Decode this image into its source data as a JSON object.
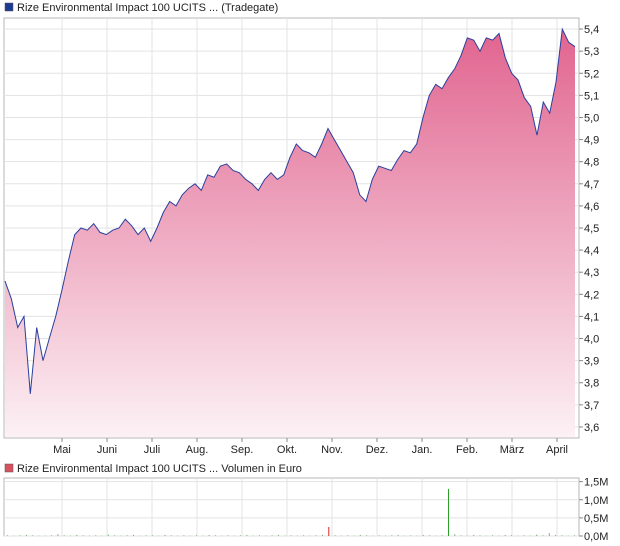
{
  "chart_data": [
    {
      "type": "area",
      "legend_label": "Rize Environmental Impact 100 UCITS ... (Tradegate)",
      "legend_color": "#1f3a93",
      "line_color": "#2a3f9d",
      "fill_top_color": "#e1648f",
      "fill_bottom_color": "#fcf1f5",
      "grid": true,
      "y_axis_side": "right",
      "ylim": [
        3.55,
        5.45
      ],
      "y_ticks": [
        {
          "value": 5.4,
          "label": "5,4"
        },
        {
          "value": 5.3,
          "label": "5,3"
        },
        {
          "value": 5.2,
          "label": "5,2"
        },
        {
          "value": 5.1,
          "label": "5,1"
        },
        {
          "value": 5.0,
          "label": "5,0"
        },
        {
          "value": 4.9,
          "label": "4,9"
        },
        {
          "value": 4.8,
          "label": "4,8"
        },
        {
          "value": 4.7,
          "label": "4,7"
        },
        {
          "value": 4.6,
          "label": "4,6"
        },
        {
          "value": 4.5,
          "label": "4,5"
        },
        {
          "value": 4.4,
          "label": "4,4"
        },
        {
          "value": 4.3,
          "label": "4,3"
        },
        {
          "value": 4.2,
          "label": "4,2"
        },
        {
          "value": 4.1,
          "label": "4,1"
        },
        {
          "value": 4.0,
          "label": "4,0"
        },
        {
          "value": 3.9,
          "label": "3,9"
        },
        {
          "value": 3.8,
          "label": "3,8"
        },
        {
          "value": 3.7,
          "label": "3,7"
        },
        {
          "value": 3.6,
          "label": "3,6"
        }
      ],
      "x_ticks": [
        "Mai",
        "Juni",
        "Juli",
        "Aug.",
        "Sep.",
        "Okt.",
        "Nov.",
        "Dez.",
        "Jan.",
        "Feb.",
        "März",
        "April"
      ],
      "series": [
        {
          "values": [
            4.26,
            4.18,
            4.05,
            4.1,
            3.75,
            4.05,
            3.9,
            4.0,
            4.1,
            4.22,
            4.35,
            4.47,
            4.5,
            4.49,
            4.52,
            4.48,
            4.47,
            4.49,
            4.5,
            4.54,
            4.51,
            4.47,
            4.5,
            4.44,
            4.5,
            4.57,
            4.62,
            4.6,
            4.65,
            4.68,
            4.7,
            4.67,
            4.74,
            4.73,
            4.78,
            4.79,
            4.76,
            4.75,
            4.72,
            4.7,
            4.67,
            4.72,
            4.75,
            4.72,
            4.74,
            4.82,
            4.88,
            4.85,
            4.84,
            4.82,
            4.88,
            4.95,
            4.9,
            4.85,
            4.8,
            4.75,
            4.65,
            4.62,
            4.72,
            4.78,
            4.77,
            4.76,
            4.81,
            4.85,
            4.84,
            4.88,
            5.0,
            5.1,
            5.15,
            5.13,
            5.18,
            5.22,
            5.28,
            5.36,
            5.35,
            5.3,
            5.36,
            5.35,
            5.38,
            5.27,
            5.2,
            5.17,
            5.09,
            5.05,
            4.92,
            5.07,
            5.02,
            5.16,
            5.4,
            5.34,
            5.32
          ]
        }
      ]
    },
    {
      "type": "bar",
      "legend_label": "Rize Environmental Impact 100 UCITS ... Volumen in Euro",
      "legend_color": "#d9505f",
      "grid": true,
      "y_axis_side": "right",
      "ylim": [
        0,
        1.6
      ],
      "y_ticks": [
        {
          "value": 1.5,
          "label": "1,5M"
        },
        {
          "value": 1.0,
          "label": "1,0M"
        },
        {
          "value": 0.5,
          "label": "0,5M"
        },
        {
          "value": 0.0,
          "label": "0,0M"
        }
      ],
      "series": [
        {
          "values": [
            0.02,
            0.01,
            0.02,
            0.03,
            0.02,
            0.01,
            0.01,
            0.02,
            0.05,
            0.02,
            0.01,
            0.03,
            0.02,
            0.01,
            0.02,
            0.01,
            0.04,
            0.02,
            0.01,
            0.02,
            0.03,
            0.01,
            0.02,
            0.02,
            0.01,
            0.03,
            0.02,
            0.01,
            0.02,
            0.01,
            0.02,
            0.01,
            0.03,
            0.02,
            0.01,
            0.02,
            0.01,
            0.02,
            0.03,
            0.01,
            0.02,
            0.01,
            0.02,
            0.03,
            0.01,
            0.02,
            0.01,
            0.02,
            0.01,
            0.02,
            0.03,
            0.25,
            0.02,
            0.01,
            0.02,
            0.01,
            0.03,
            0.02,
            0.01,
            0.02,
            0.01,
            0.02,
            0.03,
            0.01,
            0.02,
            0.01,
            0.03,
            0.02,
            0.01,
            0.02,
            1.3,
            0.05,
            0.02,
            0.01,
            0.03,
            0.02,
            0.01,
            0.02,
            0.01,
            0.03,
            0.02,
            0.01,
            0.02,
            0.01,
            0.04,
            0.02,
            0.08,
            0.03,
            0.02,
            0.01,
            0.02
          ]
        }
      ]
    }
  ]
}
